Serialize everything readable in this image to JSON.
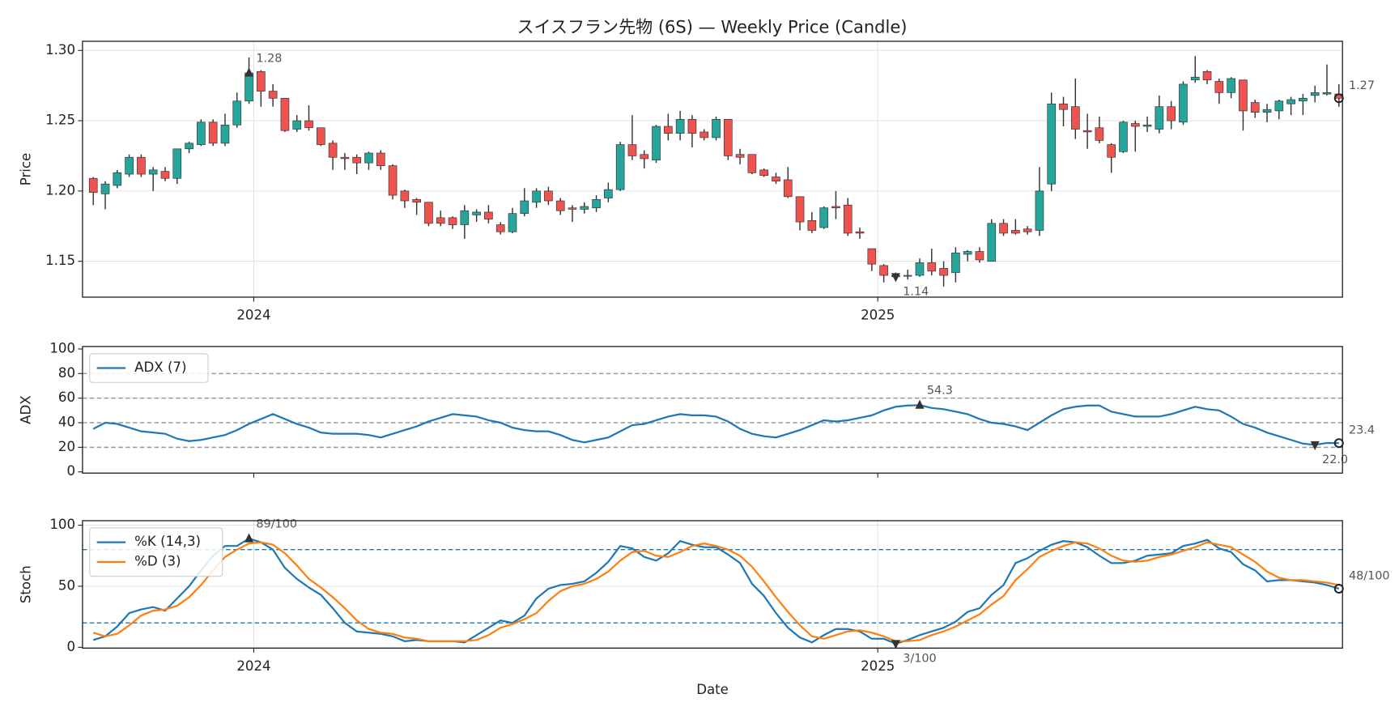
{
  "chart_data": [
    {
      "type": "candlestick",
      "title": "スイスフラン先物 (6S) — Weekly Price (Candle)",
      "ylabel": "Price",
      "categories": [
        null,
        null,
        null,
        null,
        null,
        null,
        null,
        null,
        null,
        null,
        null,
        null,
        null,
        null,
        null,
        null,
        null,
        null,
        null,
        null,
        null,
        null,
        null,
        null,
        null,
        null,
        null,
        null,
        null,
        null,
        null,
        null,
        null,
        null,
        null,
        null,
        null,
        null,
        null,
        null,
        null,
        null,
        null,
        null,
        null,
        null,
        null,
        null,
        null,
        null,
        null,
        null,
        null,
        null,
        null,
        null,
        null,
        null,
        null,
        null,
        null,
        null,
        null,
        null,
        null,
        null,
        null,
        null,
        null,
        null,
        null,
        null,
        null,
        null,
        null,
        null,
        null,
        null,
        null,
        null,
        null,
        null,
        null,
        null,
        null,
        null,
        null,
        null,
        null,
        null,
        null,
        null,
        null,
        null,
        null,
        null,
        null,
        null,
        null,
        null,
        null,
        null,
        null,
        null,
        null
      ],
      "open": [
        1.209,
        1.198,
        1.204,
        1.212,
        1.224,
        1.212,
        1.214,
        1.209,
        1.23,
        1.233,
        1.249,
        1.234,
        1.247,
        1.264,
        1.285,
        1.271,
        1.266,
        1.244,
        1.25,
        1.245,
        1.234,
        1.224,
        1.224,
        1.22,
        1.227,
        1.218,
        1.2,
        1.194,
        1.192,
        1.181,
        1.181,
        1.176,
        1.183,
        1.185,
        1.176,
        1.171,
        1.184,
        1.192,
        1.2,
        1.193,
        1.188,
        1.187,
        1.188,
        1.195,
        1.201,
        1.233,
        1.226,
        1.222,
        1.246,
        1.241,
        1.251,
        1.242,
        1.238,
        1.251,
        1.226,
        1.226,
        1.215,
        1.21,
        1.208,
        1.196,
        1.179,
        1.174,
        1.189,
        1.19,
        1.171,
        1.159,
        1.147,
        1.14,
        1.14,
        1.14,
        1.149,
        1.145,
        1.142,
        1.155,
        1.157,
        1.15,
        1.177,
        1.172,
        1.173,
        1.172,
        1.205,
        1.262,
        1.26,
        1.243,
        1.245,
        1.233,
        1.228,
        1.248,
        1.246,
        1.244,
        1.26,
        1.249,
        1.279,
        1.285,
        1.278,
        1.27,
        1.279,
        1.263,
        1.256,
        1.257,
        1.262,
        1.264,
        1.268,
        1.269,
        1.269
      ],
      "high": [
        1.21,
        1.207,
        1.215,
        1.226,
        1.226,
        1.217,
        1.217,
        1.23,
        1.235,
        1.251,
        1.251,
        1.255,
        1.27,
        1.295,
        1.286,
        1.276,
        1.266,
        1.254,
        1.261,
        1.245,
        1.236,
        1.227,
        1.226,
        1.228,
        1.229,
        1.219,
        1.201,
        1.195,
        1.192,
        1.186,
        1.182,
        1.19,
        1.187,
        1.19,
        1.178,
        1.188,
        1.202,
        1.202,
        1.203,
        1.195,
        1.19,
        1.192,
        1.197,
        1.206,
        1.235,
        1.254,
        1.229,
        1.247,
        1.255,
        1.257,
        1.254,
        1.244,
        1.253,
        1.251,
        1.23,
        1.226,
        1.216,
        1.213,
        1.217,
        1.196,
        1.185,
        1.189,
        1.2,
        1.195,
        1.174,
        1.159,
        1.148,
        1.142,
        1.144,
        1.152,
        1.159,
        1.15,
        1.16,
        1.158,
        1.16,
        1.18,
        1.18,
        1.18,
        1.175,
        1.217,
        1.27,
        1.267,
        1.28,
        1.255,
        1.253,
        1.234,
        1.25,
        1.25,
        1.253,
        1.268,
        1.264,
        1.278,
        1.296,
        1.286,
        1.28,
        1.281,
        1.279,
        1.265,
        1.262,
        1.265,
        1.267,
        1.269,
        1.275,
        1.29,
        1.276
      ],
      "low": [
        1.19,
        1.187,
        1.202,
        1.21,
        1.21,
        1.2,
        1.207,
        1.205,
        1.227,
        1.232,
        1.232,
        1.232,
        1.245,
        1.262,
        1.26,
        1.26,
        1.242,
        1.242,
        1.243,
        1.232,
        1.215,
        1.215,
        1.212,
        1.215,
        1.215,
        1.194,
        1.188,
        1.183,
        1.175,
        1.175,
        1.173,
        1.166,
        1.178,
        1.177,
        1.169,
        1.17,
        1.182,
        1.188,
        1.19,
        1.183,
        1.178,
        1.184,
        1.185,
        1.192,
        1.2,
        1.222,
        1.216,
        1.22,
        1.236,
        1.236,
        1.231,
        1.236,
        1.236,
        1.222,
        1.219,
        1.212,
        1.21,
        1.205,
        1.195,
        1.172,
        1.17,
        1.173,
        1.18,
        1.168,
        1.166,
        1.143,
        1.135,
        1.136,
        1.137,
        1.139,
        1.14,
        1.132,
        1.135,
        1.15,
        1.149,
        1.15,
        1.168,
        1.169,
        1.169,
        1.168,
        1.2,
        1.246,
        1.237,
        1.23,
        1.234,
        1.213,
        1.227,
        1.228,
        1.242,
        1.241,
        1.244,
        1.247,
        1.277,
        1.276,
        1.262,
        1.266,
        1.243,
        1.252,
        1.249,
        1.251,
        1.254,
        1.254,
        1.263,
        1.268,
        1.26
      ],
      "close": [
        1.199,
        1.205,
        1.213,
        1.224,
        1.212,
        1.215,
        1.209,
        1.23,
        1.234,
        1.249,
        1.234,
        1.247,
        1.264,
        1.284,
        1.271,
        1.266,
        1.243,
        1.25,
        1.245,
        1.233,
        1.224,
        1.223,
        1.22,
        1.227,
        1.218,
        1.197,
        1.193,
        1.192,
        1.177,
        1.177,
        1.176,
        1.186,
        1.185,
        1.18,
        1.171,
        1.184,
        1.193,
        1.2,
        1.193,
        1.186,
        1.187,
        1.189,
        1.194,
        1.201,
        1.233,
        1.225,
        1.223,
        1.246,
        1.241,
        1.251,
        1.241,
        1.238,
        1.251,
        1.225,
        1.224,
        1.213,
        1.211,
        1.207,
        1.196,
        1.178,
        1.172,
        1.188,
        1.188,
        1.17,
        1.17,
        1.148,
        1.14,
        1.139,
        1.14,
        1.149,
        1.143,
        1.14,
        1.156,
        1.157,
        1.151,
        1.177,
        1.17,
        1.17,
        1.171,
        1.2,
        1.262,
        1.258,
        1.244,
        1.242,
        1.236,
        1.224,
        1.249,
        1.246,
        1.247,
        1.26,
        1.25,
        1.276,
        1.281,
        1.279,
        1.27,
        1.28,
        1.257,
        1.256,
        1.258,
        1.264,
        1.265,
        1.266,
        1.27,
        1.27,
        1.266
      ],
      "up_color": "#26a69a",
      "down_color": "#ef5350",
      "wick_color": "#333333",
      "xlim": [
        -0.9,
        104.3
      ],
      "xticks": [
        {
          "value": 13.4,
          "label": "2024"
        },
        {
          "value": 65.5,
          "label": "2025"
        }
      ],
      "ylim": [
        1.1245,
        1.3065
      ],
      "yticks": [
        1.15,
        {
          "value": 1.2,
          "label": "1.20"
        },
        1.25,
        {
          "value": 1.3,
          "label": "1.30"
        }
      ],
      "grid": true,
      "annotations": [
        {
          "text": "1.28",
          "index": 13,
          "value": 1.284,
          "marker": "max"
        },
        {
          "text": "1.14",
          "index": 67,
          "value": 1.139,
          "marker": "min"
        },
        {
          "text": "1.27",
          "index": 104,
          "value": 1.266,
          "marker": "last"
        }
      ]
    },
    {
      "type": "line",
      "ylabel": "ADX",
      "series": [
        {
          "name": "ADX (7)",
          "color": "#1f77b4",
          "values": [
            35,
            40,
            39,
            36,
            33,
            32,
            31,
            27,
            25,
            26,
            28,
            30,
            34,
            39,
            43,
            47,
            43,
            39,
            36,
            32,
            31,
            31,
            31,
            30,
            28,
            31,
            34,
            37,
            41,
            44,
            47,
            46,
            45,
            42,
            40,
            36,
            34,
            33,
            33,
            30,
            26,
            24,
            26,
            28,
            33,
            38,
            39,
            42,
            45,
            47,
            46,
            46,
            45,
            41,
            35,
            31,
            29,
            28,
            31,
            34,
            38,
            42,
            41,
            42,
            44,
            46,
            50,
            53,
            54,
            54.3,
            52,
            51,
            49,
            47,
            43,
            40,
            39,
            37,
            34,
            40,
            46,
            51,
            53,
            54,
            54,
            49,
            47,
            45,
            45,
            45,
            47,
            50,
            53,
            51,
            50,
            45,
            39,
            36,
            32,
            29,
            26,
            23,
            22,
            23.5,
            23.4
          ]
        }
      ],
      "xlim": [
        -0.9,
        104.3
      ],
      "ylim": [
        -1,
        102
      ],
      "yticks": [
        0,
        20,
        40,
        60,
        80,
        100
      ],
      "grid": false,
      "hlines": [
        20,
        40,
        60,
        80
      ],
      "hline_color": "#999999",
      "legend": "upper left",
      "annotations": [
        {
          "text": "54.3",
          "index": 69,
          "value": 54.3,
          "marker": "max"
        },
        {
          "text": "22.0",
          "index": 102,
          "value": 22,
          "marker": "min"
        },
        {
          "text": "23.4",
          "index": 104,
          "value": 23.4,
          "marker": "last"
        }
      ]
    },
    {
      "type": "line",
      "ylabel": "Stoch",
      "xlabel": "Date",
      "series": [
        {
          "name": "%K (14,3)",
          "color": "#1f77b4",
          "values": [
            6,
            9,
            17,
            28,
            31,
            33,
            30,
            40,
            50,
            63,
            75,
            83,
            83,
            89,
            86,
            80,
            65,
            56,
            49,
            43,
            32,
            20,
            13,
            12,
            11,
            9,
            5,
            6,
            5,
            5,
            5,
            4,
            10,
            16,
            22,
            20,
            26,
            40,
            48,
            51,
            52,
            54,
            61,
            70,
            83,
            81,
            74,
            71,
            77,
            87,
            84,
            82,
            82,
            76,
            69,
            52,
            42,
            28,
            16,
            8,
            4,
            10,
            15,
            15,
            13,
            7,
            7,
            3,
            6,
            10,
            13,
            16,
            21,
            29,
            32,
            43,
            51,
            69,
            73,
            79,
            84,
            87,
            86,
            82,
            75,
            69,
            69,
            71,
            75,
            76,
            77,
            83,
            85,
            88,
            81,
            78,
            68,
            63,
            54,
            55,
            55,
            54,
            53,
            51,
            48
          ]
        },
        {
          "name": "%D (3)",
          "color": "#ff7f0e",
          "values": [
            12,
            9,
            11,
            18,
            26,
            30,
            31,
            34,
            41,
            51,
            63,
            74,
            80,
            85,
            86,
            84,
            77,
            67,
            56,
            49,
            41,
            32,
            22,
            15,
            12,
            11,
            8,
            7,
            5,
            5,
            5,
            5,
            6,
            10,
            16,
            19,
            23,
            28,
            38,
            46,
            50,
            52,
            56,
            62,
            71,
            78,
            79,
            75,
            74,
            78,
            83,
            85,
            83,
            80,
            75,
            66,
            54,
            41,
            29,
            18,
            9,
            7,
            10,
            13,
            14,
            12,
            9,
            5,
            5,
            6,
            10,
            13,
            17,
            22,
            27,
            35,
            42,
            55,
            64,
            74,
            79,
            83,
            86,
            85,
            81,
            75,
            71,
            70,
            71,
            74,
            76,
            79,
            82,
            86,
            84,
            82,
            76,
            70,
            62,
            57,
            55,
            55,
            54,
            53,
            51
          ]
        }
      ],
      "xlim": [
        -0.9,
        104.3
      ],
      "xticks": [
        {
          "value": 13.4,
          "label": "2024"
        },
        {
          "value": 65.5,
          "label": "2025"
        }
      ],
      "ylim": [
        -0.7,
        103.7
      ],
      "yticks": [
        0,
        50,
        100
      ],
      "grid": true,
      "hlines": [
        20,
        80
      ],
      "hline_color": "#1f77b4",
      "legend": "upper left",
      "annotations": [
        {
          "text": "89/100",
          "index": 13,
          "value": 89,
          "marker": "max"
        },
        {
          "text": "3/100",
          "index": 67,
          "value": 3,
          "marker": "min"
        },
        {
          "text": "48/100",
          "index": 104,
          "value": 48,
          "marker": "last"
        }
      ]
    }
  ]
}
